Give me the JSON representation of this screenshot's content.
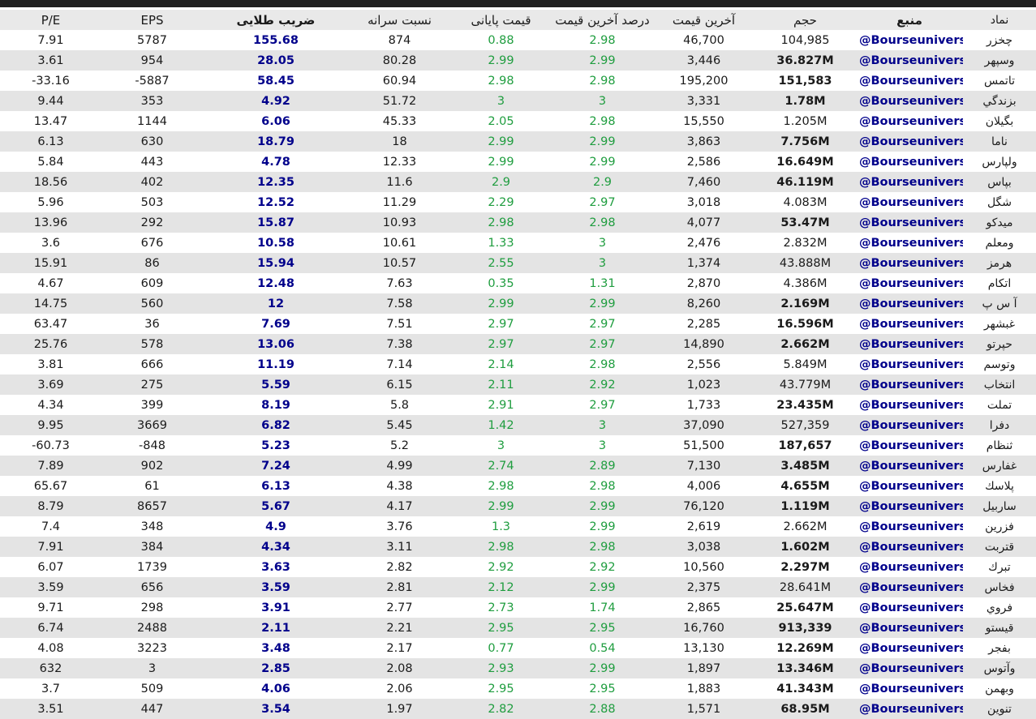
{
  "colors": {
    "accent_navy": "#00008B",
    "positive_green": "#1f9d3f",
    "row_alt_bg": "#e4e4e4",
    "header_bg": "#e9e9e9",
    "top_bar_bg": "#1f1f1f"
  },
  "table": {
    "columns": [
      {
        "key": "pe",
        "label": "P/E",
        "header_bold": false
      },
      {
        "key": "eps",
        "label": "EPS",
        "header_bold": false
      },
      {
        "key": "golden",
        "label": "ضریب طلایی",
        "header_bold": true
      },
      {
        "key": "per_capita",
        "label": "نسبت سرانه",
        "header_bold": false
      },
      {
        "key": "close_pct",
        "label": "قیمت پایانی",
        "header_bold": false
      },
      {
        "key": "last_pct",
        "label": "درصد آخرین قیمت",
        "header_bold": false
      },
      {
        "key": "last_price",
        "label": "آخرین قیمت",
        "header_bold": false
      },
      {
        "key": "volume",
        "label": "حجم",
        "header_bold": false
      },
      {
        "key": "source",
        "label": "منبع",
        "header_bold": true
      },
      {
        "key": "symbol",
        "label": "نماد",
        "header_bold": false
      }
    ],
    "rows": [
      {
        "pe": "7.91",
        "eps": "5787",
        "golden": "155.68",
        "per_capita": "874",
        "close_pct": "0.88",
        "last_pct": "2.98",
        "last_price": "46,700",
        "volume": "104,985",
        "volume_bold": false,
        "source": "@Bourseuniversi",
        "symbol": "چخزر"
      },
      {
        "pe": "3.61",
        "eps": "954",
        "golden": "28.05",
        "per_capita": "80.28",
        "close_pct": "2.99",
        "last_pct": "2.99",
        "last_price": "3,446",
        "volume": "36.827M",
        "volume_bold": true,
        "source": "@Bourseuniversi",
        "symbol": "وسپهر"
      },
      {
        "pe": "-33.16",
        "eps": "-5887",
        "golden": "58.45",
        "per_capita": "60.94",
        "close_pct": "2.98",
        "last_pct": "2.98",
        "last_price": "195,200",
        "volume": "151,583",
        "volume_bold": true,
        "source": "@Bourseuniversi",
        "symbol": "تاتمس"
      },
      {
        "pe": "9.44",
        "eps": "353",
        "golden": "4.92",
        "per_capita": "51.72",
        "close_pct": "3",
        "last_pct": "3",
        "last_price": "3,331",
        "volume": "1.78M",
        "volume_bold": true,
        "source": "@Bourseuniversi",
        "symbol": "بزندگي"
      },
      {
        "pe": "13.47",
        "eps": "1144",
        "golden": "6.06",
        "per_capita": "45.33",
        "close_pct": "2.05",
        "last_pct": "2.98",
        "last_price": "15,550",
        "volume": "1.205M",
        "volume_bold": false,
        "source": "@Bourseuniversi",
        "symbol": "بگيلان"
      },
      {
        "pe": "6.13",
        "eps": "630",
        "golden": "18.79",
        "per_capita": "18",
        "close_pct": "2.99",
        "last_pct": "2.99",
        "last_price": "3,863",
        "volume": "7.756M",
        "volume_bold": true,
        "source": "@Bourseuniversi",
        "symbol": "ناما"
      },
      {
        "pe": "5.84",
        "eps": "443",
        "golden": "4.78",
        "per_capita": "12.33",
        "close_pct": "2.99",
        "last_pct": "2.99",
        "last_price": "2,586",
        "volume": "16.649M",
        "volume_bold": true,
        "source": "@Bourseuniversi",
        "symbol": "ولپارس"
      },
      {
        "pe": "18.56",
        "eps": "402",
        "golden": "12.35",
        "per_capita": "11.6",
        "close_pct": "2.9",
        "last_pct": "2.9",
        "last_price": "7,460",
        "volume": "46.119M",
        "volume_bold": true,
        "source": "@Bourseuniversi",
        "symbol": "بپاس"
      },
      {
        "pe": "5.96",
        "eps": "503",
        "golden": "12.52",
        "per_capita": "11.29",
        "close_pct": "2.29",
        "last_pct": "2.97",
        "last_price": "3,018",
        "volume": "4.083M",
        "volume_bold": false,
        "source": "@Bourseuniversi",
        "symbol": "شگل"
      },
      {
        "pe": "13.96",
        "eps": "292",
        "golden": "15.87",
        "per_capita": "10.93",
        "close_pct": "2.98",
        "last_pct": "2.98",
        "last_price": "4,077",
        "volume": "53.47M",
        "volume_bold": true,
        "source": "@Bourseuniversi",
        "symbol": "ميدكو"
      },
      {
        "pe": "3.6",
        "eps": "676",
        "golden": "10.58",
        "per_capita": "10.61",
        "close_pct": "1.33",
        "last_pct": "3",
        "last_price": "2,476",
        "volume": "2.832M",
        "volume_bold": false,
        "source": "@Bourseuniversi",
        "symbol": "ومعلم"
      },
      {
        "pe": "15.91",
        "eps": "86",
        "golden": "15.94",
        "per_capita": "10.57",
        "close_pct": "2.55",
        "last_pct": "3",
        "last_price": "1,374",
        "volume": "43.888M",
        "volume_bold": false,
        "source": "@Bourseuniversi",
        "symbol": "هرمز"
      },
      {
        "pe": "4.67",
        "eps": "609",
        "golden": "12.48",
        "per_capita": "7.63",
        "close_pct": "0.35",
        "last_pct": "1.31",
        "last_price": "2,870",
        "volume": "4.386M",
        "volume_bold": false,
        "source": "@Bourseuniversi",
        "symbol": "اتكام"
      },
      {
        "pe": "14.75",
        "eps": "560",
        "golden": "12",
        "per_capita": "7.58",
        "close_pct": "2.99",
        "last_pct": "2.99",
        "last_price": "8,260",
        "volume": "2.169M",
        "volume_bold": true,
        "source": "@Bourseuniversi",
        "symbol": "آ س پ"
      },
      {
        "pe": "63.47",
        "eps": "36",
        "golden": "7.69",
        "per_capita": "7.51",
        "close_pct": "2.97",
        "last_pct": "2.97",
        "last_price": "2,285",
        "volume": "16.596M",
        "volume_bold": true,
        "source": "@Bourseuniversi",
        "symbol": "غبشهر"
      },
      {
        "pe": "25.76",
        "eps": "578",
        "golden": "13.06",
        "per_capita": "7.38",
        "close_pct": "2.97",
        "last_pct": "2.97",
        "last_price": "14,890",
        "volume": "2.662M",
        "volume_bold": true,
        "source": "@Bourseuniversi",
        "symbol": "حپرتو"
      },
      {
        "pe": "3.81",
        "eps": "666",
        "golden": "11.19",
        "per_capita": "7.14",
        "close_pct": "2.14",
        "last_pct": "2.98",
        "last_price": "2,556",
        "volume": "5.849M",
        "volume_bold": false,
        "source": "@Bourseuniversi",
        "symbol": "وتوسم"
      },
      {
        "pe": "3.69",
        "eps": "275",
        "golden": "5.59",
        "per_capita": "6.15",
        "close_pct": "2.11",
        "last_pct": "2.92",
        "last_price": "1,023",
        "volume": "43.779M",
        "volume_bold": false,
        "source": "@Bourseuniversi",
        "symbol": "انتخاب"
      },
      {
        "pe": "4.34",
        "eps": "399",
        "golden": "8.19",
        "per_capita": "5.8",
        "close_pct": "2.91",
        "last_pct": "2.97",
        "last_price": "1,733",
        "volume": "23.435M",
        "volume_bold": true,
        "source": "@Bourseuniversi",
        "symbol": "تملت"
      },
      {
        "pe": "9.95",
        "eps": "3669",
        "golden": "6.82",
        "per_capita": "5.45",
        "close_pct": "1.42",
        "last_pct": "3",
        "last_price": "37,090",
        "volume": "527,359",
        "volume_bold": false,
        "source": "@Bourseuniversi",
        "symbol": "دفرا"
      },
      {
        "pe": "-60.73",
        "eps": "-848",
        "golden": "5.23",
        "per_capita": "5.2",
        "close_pct": "3",
        "last_pct": "3",
        "last_price": "51,500",
        "volume": "187,657",
        "volume_bold": true,
        "source": "@Bourseuniversi",
        "symbol": "ثنظام"
      },
      {
        "pe": "7.89",
        "eps": "902",
        "golden": "7.24",
        "per_capita": "4.99",
        "close_pct": "2.74",
        "last_pct": "2.89",
        "last_price": "7,130",
        "volume": "3.485M",
        "volume_bold": true,
        "source": "@Bourseuniversi",
        "symbol": "غفارس"
      },
      {
        "pe": "65.67",
        "eps": "61",
        "golden": "6.13",
        "per_capita": "4.38",
        "close_pct": "2.98",
        "last_pct": "2.98",
        "last_price": "4,006",
        "volume": "4.655M",
        "volume_bold": true,
        "source": "@Bourseuniversi",
        "symbol": "پلاسك"
      },
      {
        "pe": "8.79",
        "eps": "8657",
        "golden": "5.67",
        "per_capita": "4.17",
        "close_pct": "2.99",
        "last_pct": "2.99",
        "last_price": "76,120",
        "volume": "1.119M",
        "volume_bold": true,
        "source": "@Bourseuniversi",
        "symbol": "ساربيل"
      },
      {
        "pe": "7.4",
        "eps": "348",
        "golden": "4.9",
        "per_capita": "3.76",
        "close_pct": "1.3",
        "last_pct": "2.99",
        "last_price": "2,619",
        "volume": "2.662M",
        "volume_bold": false,
        "source": "@Bourseuniversi",
        "symbol": "فزرين"
      },
      {
        "pe": "7.91",
        "eps": "384",
        "golden": "4.34",
        "per_capita": "3.11",
        "close_pct": "2.98",
        "last_pct": "2.98",
        "last_price": "3,038",
        "volume": "1.602M",
        "volume_bold": true,
        "source": "@Bourseuniversi",
        "symbol": "قتربت"
      },
      {
        "pe": "6.07",
        "eps": "1739",
        "golden": "3.63",
        "per_capita": "2.82",
        "close_pct": "2.92",
        "last_pct": "2.92",
        "last_price": "10,560",
        "volume": "2.297M",
        "volume_bold": true,
        "source": "@Bourseuniversi",
        "symbol": "تبرك"
      },
      {
        "pe": "3.59",
        "eps": "656",
        "golden": "3.59",
        "per_capita": "2.81",
        "close_pct": "2.12",
        "last_pct": "2.99",
        "last_price": "2,375",
        "volume": "28.641M",
        "volume_bold": false,
        "source": "@Bourseuniversi",
        "symbol": "فخاس"
      },
      {
        "pe": "9.71",
        "eps": "298",
        "golden": "3.91",
        "per_capita": "2.77",
        "close_pct": "2.73",
        "last_pct": "1.74",
        "last_price": "2,865",
        "volume": "25.647M",
        "volume_bold": true,
        "source": "@Bourseuniversi",
        "symbol": "فروي"
      },
      {
        "pe": "6.74",
        "eps": "2488",
        "golden": "2.11",
        "per_capita": "2.21",
        "close_pct": "2.95",
        "last_pct": "2.95",
        "last_price": "16,760",
        "volume": "913,339",
        "volume_bold": true,
        "source": "@Bourseuniversi",
        "symbol": "قيستو"
      },
      {
        "pe": "4.08",
        "eps": "3223",
        "golden": "3.48",
        "per_capita": "2.17",
        "close_pct": "0.77",
        "last_pct": "0.54",
        "last_price": "13,130",
        "volume": "12.269M",
        "volume_bold": true,
        "source": "@Bourseuniversi",
        "symbol": "بفجر"
      },
      {
        "pe": "632",
        "eps": "3",
        "golden": "2.85",
        "per_capita": "2.08",
        "close_pct": "2.93",
        "last_pct": "2.99",
        "last_price": "1,897",
        "volume": "13.346M",
        "volume_bold": true,
        "source": "@Bourseuniversi",
        "symbol": "وآتوس"
      },
      {
        "pe": "3.7",
        "eps": "509",
        "golden": "4.06",
        "per_capita": "2.06",
        "close_pct": "2.95",
        "last_pct": "2.95",
        "last_price": "1,883",
        "volume": "41.343M",
        "volume_bold": true,
        "source": "@Bourseuniversi",
        "symbol": "وبهمن"
      },
      {
        "pe": "3.51",
        "eps": "447",
        "golden": "3.54",
        "per_capita": "1.97",
        "close_pct": "2.82",
        "last_pct": "2.88",
        "last_price": "1,571",
        "volume": "68.95M",
        "volume_bold": true,
        "source": "@Bourseuniversi",
        "symbol": "تنوين"
      }
    ]
  }
}
